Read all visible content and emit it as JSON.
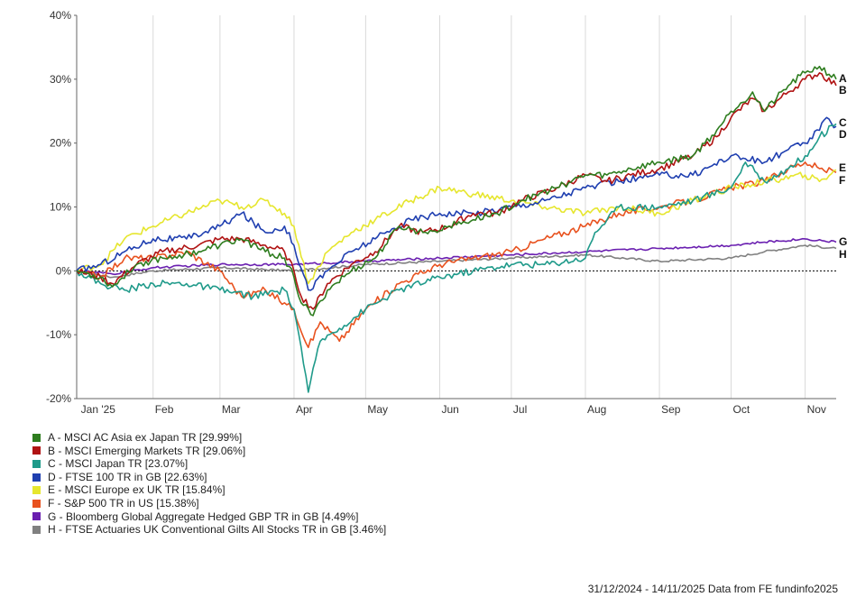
{
  "chart_data": {
    "type": "line",
    "y_tick_labels": [
      "40%",
      "30%",
      "20%",
      "10%",
      "0%",
      "-10%",
      "-20%"
    ],
    "ylim": [
      -20,
      40
    ],
    "x_tick_labels": [
      "Jan '25",
      "Feb",
      "Mar",
      "Apr",
      "May",
      "Jun",
      "Jul",
      "Aug",
      "Sep",
      "Oct",
      "Nov"
    ],
    "x_tick_dates": [
      "2025-01-01",
      "2025-02-01",
      "2025-03-01",
      "2025-04-01",
      "2025-05-01",
      "2025-06-01",
      "2025-07-01",
      "2025-08-01",
      "2025-09-01",
      "2025-10-01",
      "2025-11-01"
    ],
    "xlim": [
      "2024-12-31",
      "2025-11-14"
    ],
    "grid": "vertical",
    "zero_line": true,
    "legend_position": "bottom",
    "footer": "31/12/2024 - 14/11/2025 Data from FE fundinfo2025",
    "series": [
      {
        "id": "A",
        "name": "A - MSCI AC Asia ex Japan TR [29.99%]",
        "color": "#2e7d1f",
        "points": [
          [
            "2024-12-31",
            0
          ],
          [
            "2025-01-10",
            -1
          ],
          [
            "2025-01-15",
            -2.5
          ],
          [
            "2025-01-25",
            1
          ],
          [
            "2025-02-05",
            2
          ],
          [
            "2025-02-20",
            3
          ],
          [
            "2025-03-01",
            4
          ],
          [
            "2025-03-10",
            5
          ],
          [
            "2025-03-20",
            3
          ],
          [
            "2025-03-28",
            2
          ],
          [
            "2025-04-01",
            -1
          ],
          [
            "2025-04-04",
            -5
          ],
          [
            "2025-04-09",
            -7
          ],
          [
            "2025-04-15",
            -3
          ],
          [
            "2025-04-25",
            0
          ],
          [
            "2025-05-05",
            2
          ],
          [
            "2025-05-15",
            7
          ],
          [
            "2025-05-25",
            6
          ],
          [
            "2025-06-05",
            7
          ],
          [
            "2025-06-15",
            8
          ],
          [
            "2025-06-25",
            9
          ],
          [
            "2025-07-05",
            11
          ],
          [
            "2025-07-20",
            13
          ],
          [
            "2025-08-01",
            15
          ],
          [
            "2025-08-10",
            15
          ],
          [
            "2025-08-20",
            16
          ],
          [
            "2025-09-01",
            17
          ],
          [
            "2025-09-15",
            18
          ],
          [
            "2025-09-25",
            22
          ],
          [
            "2025-10-01",
            25
          ],
          [
            "2025-10-10",
            28
          ],
          [
            "2025-10-15",
            25
          ],
          [
            "2025-10-25",
            29
          ],
          [
            "2025-11-01",
            31
          ],
          [
            "2025-11-07",
            32
          ],
          [
            "2025-11-14",
            30
          ]
        ]
      },
      {
        "id": "B",
        "name": "B - MSCI Emerging Markets TR [29.06%]",
        "color": "#b01313",
        "points": [
          [
            "2024-12-31",
            0
          ],
          [
            "2025-01-10",
            -1
          ],
          [
            "2025-01-15",
            -2
          ],
          [
            "2025-01-25",
            1
          ],
          [
            "2025-02-05",
            3
          ],
          [
            "2025-02-20",
            4
          ],
          [
            "2025-03-01",
            5
          ],
          [
            "2025-03-10",
            5
          ],
          [
            "2025-03-20",
            4
          ],
          [
            "2025-03-28",
            3
          ],
          [
            "2025-04-01",
            0
          ],
          [
            "2025-04-04",
            -4
          ],
          [
            "2025-04-09",
            -6
          ],
          [
            "2025-04-15",
            -2
          ],
          [
            "2025-04-25",
            1
          ],
          [
            "2025-05-05",
            3
          ],
          [
            "2025-05-15",
            7
          ],
          [
            "2025-05-25",
            6
          ],
          [
            "2025-06-05",
            7
          ],
          [
            "2025-06-15",
            9
          ],
          [
            "2025-06-25",
            9
          ],
          [
            "2025-07-05",
            11
          ],
          [
            "2025-07-20",
            13
          ],
          [
            "2025-08-01",
            15
          ],
          [
            "2025-08-10",
            14
          ],
          [
            "2025-08-20",
            15
          ],
          [
            "2025-09-01",
            16
          ],
          [
            "2025-09-15",
            18
          ],
          [
            "2025-09-25",
            21
          ],
          [
            "2025-10-01",
            24
          ],
          [
            "2025-10-10",
            27
          ],
          [
            "2025-10-15",
            25
          ],
          [
            "2025-10-25",
            28
          ],
          [
            "2025-11-01",
            30
          ],
          [
            "2025-11-07",
            31
          ],
          [
            "2025-11-14",
            29
          ]
        ]
      },
      {
        "id": "C",
        "name": "C - MSCI Japan TR [23.07%]",
        "color": "#1f9a8a",
        "points": [
          [
            "2024-12-31",
            0
          ],
          [
            "2025-01-10",
            -2
          ],
          [
            "2025-01-20",
            -3
          ],
          [
            "2025-02-01",
            -2
          ],
          [
            "2025-02-15",
            -2
          ],
          [
            "2025-03-01",
            -3
          ],
          [
            "2025-03-15",
            -4
          ],
          [
            "2025-03-28",
            -3
          ],
          [
            "2025-04-01",
            -6
          ],
          [
            "2025-04-04",
            -12
          ],
          [
            "2025-04-07",
            -19
          ],
          [
            "2025-04-12",
            -11
          ],
          [
            "2025-04-20",
            -9
          ],
          [
            "2025-05-01",
            -6
          ],
          [
            "2025-05-15",
            -3
          ],
          [
            "2025-06-01",
            -1
          ],
          [
            "2025-06-15",
            0
          ],
          [
            "2025-07-01",
            1
          ],
          [
            "2025-07-15",
            1
          ],
          [
            "2025-08-01",
            2
          ],
          [
            "2025-08-05",
            6
          ],
          [
            "2025-08-15",
            10
          ],
          [
            "2025-09-01",
            10
          ],
          [
            "2025-09-15",
            11
          ],
          [
            "2025-10-01",
            13
          ],
          [
            "2025-10-07",
            17
          ],
          [
            "2025-10-15",
            14
          ],
          [
            "2025-10-25",
            16
          ],
          [
            "2025-11-01",
            18
          ],
          [
            "2025-11-07",
            21
          ],
          [
            "2025-11-14",
            23
          ]
        ]
      },
      {
        "id": "D",
        "name": "D - FTSE 100 TR in GB [22.63%]",
        "color": "#1f3fb0",
        "points": [
          [
            "2024-12-31",
            0
          ],
          [
            "2025-01-10",
            1
          ],
          [
            "2025-01-20",
            3
          ],
          [
            "2025-02-01",
            5
          ],
          [
            "2025-02-15",
            5
          ],
          [
            "2025-03-01",
            7
          ],
          [
            "2025-03-10",
            9
          ],
          [
            "2025-03-20",
            6
          ],
          [
            "2025-03-28",
            7
          ],
          [
            "2025-04-01",
            4
          ],
          [
            "2025-04-07",
            -3
          ],
          [
            "2025-04-15",
            0
          ],
          [
            "2025-04-25",
            3
          ],
          [
            "2025-05-05",
            5
          ],
          [
            "2025-05-20",
            8
          ],
          [
            "2025-06-01",
            9
          ],
          [
            "2025-06-15",
            9
          ],
          [
            "2025-07-01",
            10
          ],
          [
            "2025-07-15",
            11
          ],
          [
            "2025-08-01",
            13
          ],
          [
            "2025-08-15",
            14
          ],
          [
            "2025-09-01",
            15
          ],
          [
            "2025-09-15",
            15
          ],
          [
            "2025-10-01",
            18
          ],
          [
            "2025-10-15",
            17
          ],
          [
            "2025-10-25",
            19
          ],
          [
            "2025-11-01",
            20
          ],
          [
            "2025-11-07",
            22
          ],
          [
            "2025-11-10",
            24
          ],
          [
            "2025-11-14",
            22.6
          ]
        ]
      },
      {
        "id": "E",
        "name": "E - MSCI Europe ex UK TR [15.84%]",
        "color": "#e6e62e",
        "points": [
          [
            "2024-12-31",
            0
          ],
          [
            "2025-01-10",
            1
          ],
          [
            "2025-01-20",
            5
          ],
          [
            "2025-02-01",
            7
          ],
          [
            "2025-02-15",
            9
          ],
          [
            "2025-03-01",
            11
          ],
          [
            "2025-03-10",
            10
          ],
          [
            "2025-03-20",
            11
          ],
          [
            "2025-03-28",
            9
          ],
          [
            "2025-04-01",
            7
          ],
          [
            "2025-04-07",
            -2
          ],
          [
            "2025-04-15",
            3
          ],
          [
            "2025-04-25",
            6
          ],
          [
            "2025-05-05",
            8
          ],
          [
            "2025-05-20",
            11
          ],
          [
            "2025-06-01",
            13
          ],
          [
            "2025-06-15",
            12
          ],
          [
            "2025-07-01",
            11
          ],
          [
            "2025-07-15",
            10
          ],
          [
            "2025-08-01",
            9
          ],
          [
            "2025-08-15",
            10
          ],
          [
            "2025-09-01",
            9
          ],
          [
            "2025-09-15",
            11
          ],
          [
            "2025-10-01",
            13
          ],
          [
            "2025-10-15",
            14
          ],
          [
            "2025-11-01",
            15
          ],
          [
            "2025-11-07",
            14
          ],
          [
            "2025-11-14",
            15.8
          ]
        ]
      },
      {
        "id": "F",
        "name": "F - S&P 500 TR in US [15.38%]",
        "color": "#e8521f",
        "points": [
          [
            "2024-12-31",
            0
          ],
          [
            "2025-01-10",
            -1
          ],
          [
            "2025-01-20",
            2
          ],
          [
            "2025-02-01",
            2
          ],
          [
            "2025-02-15",
            3
          ],
          [
            "2025-03-01",
            0
          ],
          [
            "2025-03-10",
            -4
          ],
          [
            "2025-03-20",
            -3
          ],
          [
            "2025-03-28",
            -5
          ],
          [
            "2025-04-01",
            -6
          ],
          [
            "2025-04-07",
            -12
          ],
          [
            "2025-04-12",
            -8
          ],
          [
            "2025-04-20",
            -11
          ],
          [
            "2025-05-01",
            -6
          ],
          [
            "2025-05-15",
            -2
          ],
          [
            "2025-06-01",
            1
          ],
          [
            "2025-06-15",
            2
          ],
          [
            "2025-07-01",
            3
          ],
          [
            "2025-07-15",
            5
          ],
          [
            "2025-08-01",
            7
          ],
          [
            "2025-08-15",
            9
          ],
          [
            "2025-09-01",
            10
          ],
          [
            "2025-09-15",
            11
          ],
          [
            "2025-10-01",
            13
          ],
          [
            "2025-10-15",
            14
          ],
          [
            "2025-10-25",
            16
          ],
          [
            "2025-11-01",
            17
          ],
          [
            "2025-11-07",
            16
          ],
          [
            "2025-11-14",
            15.4
          ]
        ]
      },
      {
        "id": "G",
        "name": "G - Bloomberg Global Aggregate Hedged GBP TR in GB [4.49%]",
        "color": "#6a1fb0",
        "points": [
          [
            "2024-12-31",
            0
          ],
          [
            "2025-01-15",
            -0.5
          ],
          [
            "2025-02-01",
            0.5
          ],
          [
            "2025-03-01",
            1
          ],
          [
            "2025-04-01",
            1
          ],
          [
            "2025-05-01",
            1.5
          ],
          [
            "2025-06-01",
            2
          ],
          [
            "2025-07-01",
            2.5
          ],
          [
            "2025-08-01",
            3
          ],
          [
            "2025-09-01",
            3.5
          ],
          [
            "2025-10-01",
            4
          ],
          [
            "2025-10-15",
            4.5
          ],
          [
            "2025-11-01",
            5
          ],
          [
            "2025-11-14",
            4.5
          ]
        ]
      },
      {
        "id": "H",
        "name": "H - FTSE Actuaries UK Conventional Gilts All Stocks TR in GB [3.46%]",
        "color": "#808080",
        "points": [
          [
            "2024-12-31",
            0
          ],
          [
            "2025-01-15",
            -1
          ],
          [
            "2025-02-01",
            0
          ],
          [
            "2025-03-01",
            0.5
          ],
          [
            "2025-04-01",
            0
          ],
          [
            "2025-05-01",
            1
          ],
          [
            "2025-06-01",
            1.5
          ],
          [
            "2025-07-01",
            2
          ],
          [
            "2025-08-01",
            2.5
          ],
          [
            "2025-09-01",
            1.5
          ],
          [
            "2025-10-01",
            2
          ],
          [
            "2025-10-15",
            3
          ],
          [
            "2025-11-01",
            4
          ],
          [
            "2025-11-14",
            3.5
          ]
        ]
      }
    ]
  },
  "end_labels": [
    "A",
    "B",
    "C",
    "D",
    "E",
    "F",
    "G",
    "H"
  ]
}
